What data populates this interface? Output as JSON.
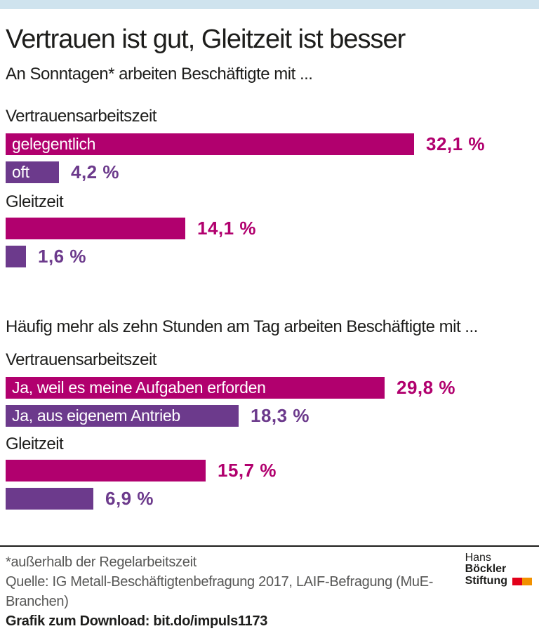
{
  "theme": {
    "top_bar_color": "#cfe3ee",
    "magenta": "#b1006e",
    "purple": "#6c3a8c",
    "text_dark": "#1d1d1b",
    "text_gray": "#575756"
  },
  "title": "Vertrauen ist gut, Gleitzeit ist besser",
  "chart_data": {
    "type": "bar",
    "orientation": "horizontal",
    "unit": "%",
    "xlim": [
      0,
      35
    ],
    "grid": false,
    "legend": "none",
    "charts": [
      {
        "heading": "An Sonntagen* arbeiten Beschäftigte mit ...",
        "groups": [
          {
            "label": "Vertrauensarbeitszeit",
            "bars": [
              {
                "label": "gelegentlich",
                "value": 32.1,
                "value_label": "32,1 %",
                "color": "#b1006e"
              },
              {
                "label": "oft",
                "value": 4.2,
                "value_label": "4,2 %",
                "color": "#6c3a8c"
              }
            ]
          },
          {
            "label": "Gleitzeit",
            "bars": [
              {
                "label": "",
                "value": 14.1,
                "value_label": "14,1 %",
                "color": "#b1006e"
              },
              {
                "label": "",
                "value": 1.6,
                "value_label": "1,6 %",
                "color": "#6c3a8c"
              }
            ]
          }
        ]
      },
      {
        "heading": "Häufig mehr als zehn Stunden am Tag arbeiten Beschäftigte mit ...",
        "groups": [
          {
            "label": "Vertrauensarbeitszeit",
            "bars": [
              {
                "label": "Ja, weil es meine Aufgaben erforden",
                "value": 29.8,
                "value_label": "29,8 %",
                "color": "#b1006e"
              },
              {
                "label": "Ja, aus eigenem Antrieb",
                "value": 18.3,
                "value_label": "18,3 %",
                "color": "#6c3a8c"
              }
            ]
          },
          {
            "label": "Gleitzeit",
            "bars": [
              {
                "label": "",
                "value": 15.7,
                "value_label": "15,7 %",
                "color": "#b1006e"
              },
              {
                "label": "",
                "value": 6.9,
                "value_label": "6,9 %",
                "color": "#6c3a8c"
              }
            ]
          }
        ]
      }
    ]
  },
  "footer": {
    "footnote": "*außerhalb der Regelarbeitszeit",
    "source": "Quelle: IG Metall-Beschäftigtenbefragung 2017, LAIF-Befragung (MuE-Branchen)",
    "download": "Grafik zum Download: bit.do/impuls1173"
  },
  "logo": {
    "name_regular": "Hans",
    "name_bold": "Böckler",
    "line2": "Stiftung",
    "square_colors": [
      "#e2001a",
      "#f29100"
    ]
  }
}
